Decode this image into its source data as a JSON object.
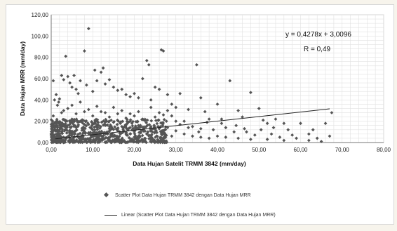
{
  "chart_data": {
    "type": "scatter",
    "xlabel": "Data Hujan Satelit TRMM 3842 (mm/day)",
    "ylabel": "Data Hujan MRR (mm/day)",
    "xlim": [
      0,
      80
    ],
    "ylim": [
      0,
      120
    ],
    "xticks": [
      "0,00",
      "10,00",
      "20,00",
      "30,00",
      "40,00",
      "50,00",
      "60,00",
      "70,00",
      "80,00"
    ],
    "yticks": [
      "0,00",
      "20,00",
      "40,00",
      "60,00",
      "80,00",
      "100,00",
      "120,00"
    ],
    "grid": true,
    "equation": "y = 0,4278x + 3,0096",
    "r_label": "R = 0,49",
    "trendline": {
      "slope": 0.4278,
      "intercept": 3.0096,
      "x_range": [
        1,
        67
      ]
    },
    "series": [
      {
        "name": "Scatter Plot Data Hujan TRMM 3842 dengan Data Hujan MRR",
        "marker": "diamond",
        "color": "#555555",
        "points": [
          [
            0.5,
            58
          ],
          [
            1.2,
            45
          ],
          [
            2,
            41
          ],
          [
            2.5,
            63
          ],
          [
            3,
            59
          ],
          [
            3.5,
            81
          ],
          [
            4,
            62
          ],
          [
            4.5,
            56
          ],
          [
            5,
            52
          ],
          [
            5.5,
            63
          ],
          [
            6,
            50
          ],
          [
            6.5,
            46
          ],
          [
            7,
            58
          ],
          [
            8,
            86
          ],
          [
            8.5,
            54
          ],
          [
            9,
            107
          ],
          [
            10,
            48
          ],
          [
            10.5,
            68
          ],
          [
            11,
            58
          ],
          [
            12,
            66
          ],
          [
            12.5,
            70
          ],
          [
            13,
            55
          ],
          [
            14,
            59
          ],
          [
            15,
            52
          ],
          [
            16,
            49
          ],
          [
            17,
            50
          ],
          [
            18,
            45
          ],
          [
            19,
            43
          ],
          [
            20,
            46
          ],
          [
            21,
            42
          ],
          [
            22,
            60
          ],
          [
            23,
            77
          ],
          [
            23.5,
            73
          ],
          [
            24,
            40
          ],
          [
            25,
            52
          ],
          [
            26,
            50
          ],
          [
            26.5,
            87
          ],
          [
            27,
            86
          ],
          [
            28,
            45
          ],
          [
            29,
            36
          ],
          [
            30,
            33
          ],
          [
            31,
            46
          ],
          [
            33,
            31
          ],
          [
            35,
            73
          ],
          [
            36,
            42
          ],
          [
            37,
            29
          ],
          [
            38,
            22
          ],
          [
            40,
            36
          ],
          [
            41,
            22
          ],
          [
            43,
            58
          ],
          [
            45,
            30
          ],
          [
            46,
            24
          ],
          [
            48,
            47
          ],
          [
            50,
            32
          ],
          [
            51,
            21
          ],
          [
            52,
            18
          ],
          [
            54,
            22
          ],
          [
            56,
            18
          ],
          [
            57,
            12
          ],
          [
            60,
            18
          ],
          [
            62,
            8
          ],
          [
            66,
            18
          ],
          [
            67,
            6
          ],
          [
            67.5,
            28
          ],
          [
            35.5,
            10
          ],
          [
            42,
            14
          ],
          [
            47,
            10
          ],
          [
            53,
            8
          ],
          [
            58,
            7
          ],
          [
            63,
            12
          ],
          [
            29,
            25
          ],
          [
            32,
            20
          ],
          [
            34,
            15
          ],
          [
            39,
            12
          ],
          [
            44,
            10
          ],
          [
            49,
            7
          ],
          [
            55,
            5
          ],
          [
            59,
            4
          ],
          [
            64,
            4
          ],
          [
            3,
            30
          ],
          [
            5,
            35
          ],
          [
            7,
            38
          ],
          [
            9,
            31
          ],
          [
            11,
            34
          ],
          [
            13,
            28
          ],
          [
            15,
            33
          ],
          [
            17,
            30
          ],
          [
            19,
            27
          ],
          [
            21,
            29
          ],
          [
            24,
            33
          ],
          [
            26,
            28
          ],
          [
            28,
            30
          ],
          [
            1.5,
            35
          ],
          [
            2.5,
            28
          ],
          [
            4,
            32
          ],
          [
            6,
            27
          ],
          [
            8,
            29
          ],
          [
            10,
            25
          ],
          [
            12,
            29
          ],
          [
            14,
            24
          ],
          [
            16,
            27
          ],
          [
            18,
            23
          ],
          [
            20,
            25
          ],
          [
            22,
            22
          ],
          [
            25,
            24
          ],
          [
            27,
            26
          ],
          [
            30,
            20
          ],
          [
            31,
            17
          ],
          [
            33,
            14
          ],
          [
            36,
            13
          ],
          [
            37.5,
            19
          ],
          [
            41,
            18
          ],
          [
            44.5,
            16
          ],
          [
            46.5,
            13
          ],
          [
            50.5,
            12
          ],
          [
            53.5,
            14
          ],
          [
            0.8,
            40
          ],
          [
            1.8,
            38
          ],
          [
            0.5,
            25
          ],
          [
            1,
            18
          ],
          [
            1.5,
            12
          ],
          [
            2,
            8
          ],
          [
            3,
            5
          ],
          [
            4,
            16
          ],
          [
            5,
            22
          ],
          [
            6,
            14
          ],
          [
            7,
            20
          ],
          [
            8,
            10
          ],
          [
            9,
            17
          ],
          [
            10,
            12
          ],
          [
            11,
            20
          ],
          [
            12,
            9
          ],
          [
            13,
            16
          ],
          [
            14,
            13
          ],
          [
            15,
            19
          ],
          [
            16,
            11
          ],
          [
            17,
            15
          ],
          [
            18,
            8
          ],
          [
            19,
            14
          ],
          [
            20,
            10
          ],
          [
            21,
            16
          ],
          [
            22,
            12
          ],
          [
            23,
            8
          ],
          [
            24,
            15
          ],
          [
            25,
            10
          ],
          [
            26,
            13
          ],
          [
            27,
            9
          ],
          [
            28,
            14
          ],
          [
            29,
            6
          ],
          [
            30,
            11
          ],
          [
            32,
            8
          ],
          [
            34,
            6
          ],
          [
            36,
            5
          ],
          [
            38,
            4
          ],
          [
            40,
            6
          ],
          [
            42,
            5
          ],
          [
            45,
            4
          ],
          [
            48,
            3
          ],
          [
            52,
            3
          ],
          [
            56,
            2
          ],
          [
            62,
            2
          ],
          [
            65,
            1
          ]
        ]
      },
      {
        "name": "Linear (Scatter Plot Data Hujan TRMM 3842 dengan Data Hujan MRR)",
        "type": "trendline",
        "color": "#222222"
      }
    ],
    "dense_cloud": {
      "x_range": [
        0,
        28
      ],
      "y_range": [
        0,
        22
      ],
      "count": 700
    }
  },
  "legend": {
    "scatter_label": "Scatter Plot Data Hujan TRMM 3842 dengan Data Hujan MRR",
    "line_label": "Linear (Scatter Plot Data Hujan TRMM 3842 dengan Data Hujan MRR)"
  }
}
